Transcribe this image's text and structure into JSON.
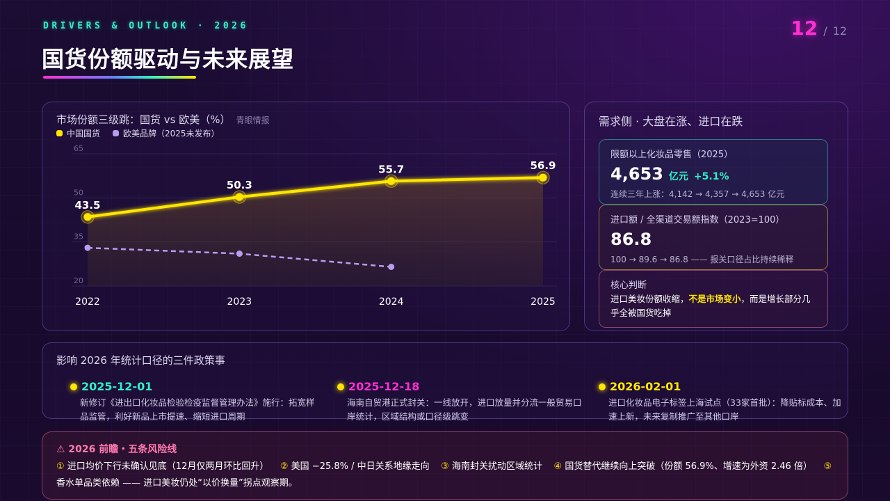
{
  "header": {
    "kicker": "DRIVERS & OUTLOOK · 2026",
    "title": "国货份额驱动与未来展望",
    "page_current": "12",
    "page_separator": "/",
    "page_total": "12"
  },
  "chart_panel": {
    "title": "市场份额三级跳：国货 vs 欧美（%）",
    "source": "青眼情报",
    "colors": {
      "domestic": "#ffe600",
      "western": "#b89cf2"
    }
  },
  "chart_data": {
    "type": "line",
    "x": [
      "2022",
      "2023",
      "2024",
      "2025"
    ],
    "ylim": [
      20,
      65
    ],
    "yticks": [
      "20",
      "35",
      "50",
      "65"
    ],
    "grid": true,
    "legend": "top-left",
    "series": [
      {
        "name": "中国国货",
        "values": [
          43.5,
          50.3,
          55.7,
          56.9
        ],
        "labels": [
          "43.5",
          "50.3",
          "55.7",
          "56.9"
        ],
        "style": "solid"
      },
      {
        "name": "欧美品牌（2025未发布）",
        "values": [
          33,
          31,
          26.5,
          null
        ],
        "style": "dashed"
      }
    ]
  },
  "demand_panel": {
    "title": "需求侧 · 大盘在涨、进口在跌",
    "card1": {
      "label": "限额以上化妆品零售（2025）",
      "value": "4,653",
      "unit": "亿元",
      "delta": "+5.1%",
      "note": "连续三年上涨：4,142 → 4,357 → 4,653 亿元"
    },
    "card2": {
      "label": "进口额 / 全渠道交易额指数（2023=100）",
      "value": "86.8",
      "note": "100 → 89.6 → 86.8 —— 报关口径占比持续稀释"
    },
    "card3": {
      "label": "核心判断",
      "text_before": "进口美妆份额收缩，",
      "text_highlight": "不是市场变小",
      "text_after": "，而是增长部分几乎全被国货吃掉"
    }
  },
  "policy_panel": {
    "title": "影响 2026 年统计口径的三件政策事",
    "events": [
      {
        "date": "2025-12-01",
        "desc": "新修订《进出口化妆品检验检疫监督管理办法》施行：拓宽样品监管，利好新品上市提速、缩短进口周期"
      },
      {
        "date": "2025-12-18",
        "desc": "海南自贸港正式封关：一线放开，进口放量并分流一般贸易口岸统计，区域结构或口径级跳变"
      },
      {
        "date": "2026-02-01",
        "desc": "进口化妆品电子标签上海试点（33家首批）：降贴标成本、加速上新，未来复制推广至其他口岸"
      }
    ]
  },
  "risk_panel": {
    "title": "⚠ 2026 前瞻・五条风险线",
    "items": [
      {
        "num": "①",
        "text": "进口均价下行未确认见底（12月仅两月环比回升）"
      },
      {
        "num": "②",
        "text": "美国 −25.8% / 中日关系地缘走向"
      },
      {
        "num": "③",
        "text": "海南封关扰动区域统计"
      },
      {
        "num": "④",
        "text": "国货替代继续向上突破（份额 56.9%、增速为外资 2.46 倍）"
      },
      {
        "num": "⑤",
        "text": "香水单品类依赖 —— 进口美妆仍处“以价换量”拐点观察期。"
      }
    ]
  }
}
